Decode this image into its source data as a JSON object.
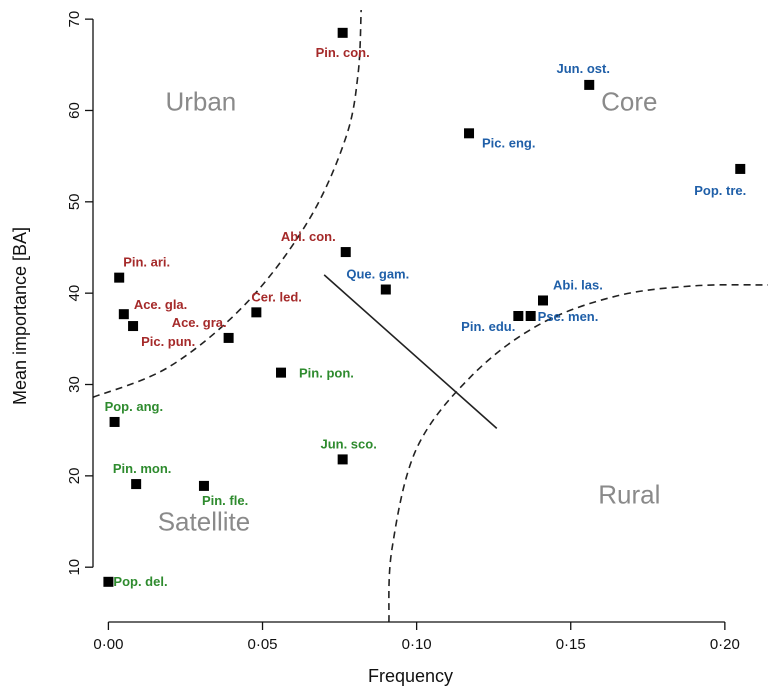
{
  "colors": {
    "urban": "#a52a2a",
    "core": "#1f5fa8",
    "satellite": "#2e8b2e",
    "region_label": "#8a8a8a",
    "axis": "#111111"
  },
  "chart_data": {
    "type": "scatter",
    "xlabel": "Frequency",
    "ylabel": "Mean importance  [BA]",
    "xlim": [
      -0.005,
      0.214
    ],
    "ylim": [
      4,
      71
    ],
    "x_ticks": [
      {
        "value": 0.0,
        "label": "0·00"
      },
      {
        "value": 0.05,
        "label": "0·05"
      },
      {
        "value": 0.1,
        "label": "0·10"
      },
      {
        "value": 0.15,
        "label": "0·15"
      },
      {
        "value": 0.2,
        "label": "0·20"
      }
    ],
    "y_ticks": [
      {
        "value": 10,
        "label": "10"
      },
      {
        "value": 20,
        "label": "20"
      },
      {
        "value": 30,
        "label": "30"
      },
      {
        "value": 40,
        "label": "40"
      },
      {
        "value": 50,
        "label": "50"
      },
      {
        "value": 60,
        "label": "60"
      },
      {
        "value": 70,
        "label": "70"
      }
    ],
    "regions": [
      {
        "label": "Urban",
        "x": 0.03,
        "y": 60
      },
      {
        "label": "Core",
        "x": 0.169,
        "y": 60
      },
      {
        "label": "Satellite",
        "x": 0.031,
        "y": 14
      },
      {
        "label": "Rural",
        "x": 0.169,
        "y": 17
      }
    ],
    "points": [
      {
        "label": "Pin. con.",
        "x": 0.076,
        "y": 68.5,
        "group": "urban"
      },
      {
        "label": "Pin. ari.",
        "x": 0.0035,
        "y": 41.7,
        "group": "urban"
      },
      {
        "label": "Ace. gla.",
        "x": 0.005,
        "y": 37.7,
        "group": "urban"
      },
      {
        "label": "Pic. pun.",
        "x": 0.008,
        "y": 36.4,
        "group": "urban"
      },
      {
        "label": "Ace. gra.",
        "x": 0.039,
        "y": 35.1,
        "group": "urban"
      },
      {
        "label": "Cer. led.",
        "x": 0.048,
        "y": 37.9,
        "group": "urban"
      },
      {
        "label": "Abi. con.",
        "x": 0.077,
        "y": 44.5,
        "group": "urban"
      },
      {
        "label": "Jun. ost.",
        "x": 0.156,
        "y": 62.8,
        "group": "core"
      },
      {
        "label": "Pic. eng.",
        "x": 0.117,
        "y": 57.5,
        "group": "core"
      },
      {
        "label": "Pop. tre.",
        "x": 0.205,
        "y": 53.6,
        "group": "core"
      },
      {
        "label": "Que. gam.",
        "x": 0.09,
        "y": 40.4,
        "group": "core"
      },
      {
        "label": "Abi. las.",
        "x": 0.141,
        "y": 39.2,
        "group": "core"
      },
      {
        "label": "Pin. edu.",
        "x": 0.133,
        "y": 37.5,
        "group": "core"
      },
      {
        "label": "Pse. men.",
        "x": 0.137,
        "y": 37.5,
        "group": "core"
      },
      {
        "label": "Pin. pon.",
        "x": 0.056,
        "y": 31.3,
        "group": "satellite"
      },
      {
        "label": "Pop. ang.",
        "x": 0.002,
        "y": 25.9,
        "group": "satellite"
      },
      {
        "label": "Jun. sco.",
        "x": 0.076,
        "y": 21.8,
        "group": "satellite"
      },
      {
        "label": "Pin. mon.",
        "x": 0.009,
        "y": 19.1,
        "group": "satellite"
      },
      {
        "label": "Pin. fle.",
        "x": 0.031,
        "y": 18.9,
        "group": "satellite"
      },
      {
        "label": "Pop. del.",
        "x": 0.0,
        "y": 8.4,
        "group": "satellite"
      }
    ],
    "boundaries": [
      {
        "name": "urban-boundary",
        "style": "dashed",
        "points": [
          [
            -0.005,
            28.6
          ],
          [
            0.02,
            32
          ],
          [
            0.045,
            39
          ],
          [
            0.065,
            48
          ],
          [
            0.077,
            57
          ],
          [
            0.081,
            64
          ],
          [
            0.082,
            71
          ]
        ]
      },
      {
        "name": "rural-boundary",
        "style": "dashed",
        "points": [
          [
            0.091,
            4
          ],
          [
            0.092,
            12
          ],
          [
            0.1,
            23
          ],
          [
            0.118,
            31
          ],
          [
            0.14,
            36.6
          ],
          [
            0.165,
            39.7
          ],
          [
            0.19,
            40.8
          ],
          [
            0.214,
            40.9
          ]
        ]
      },
      {
        "name": "divider-line",
        "style": "solid",
        "points": [
          [
            0.07,
            42
          ],
          [
            0.126,
            25.2
          ]
        ]
      }
    ]
  }
}
